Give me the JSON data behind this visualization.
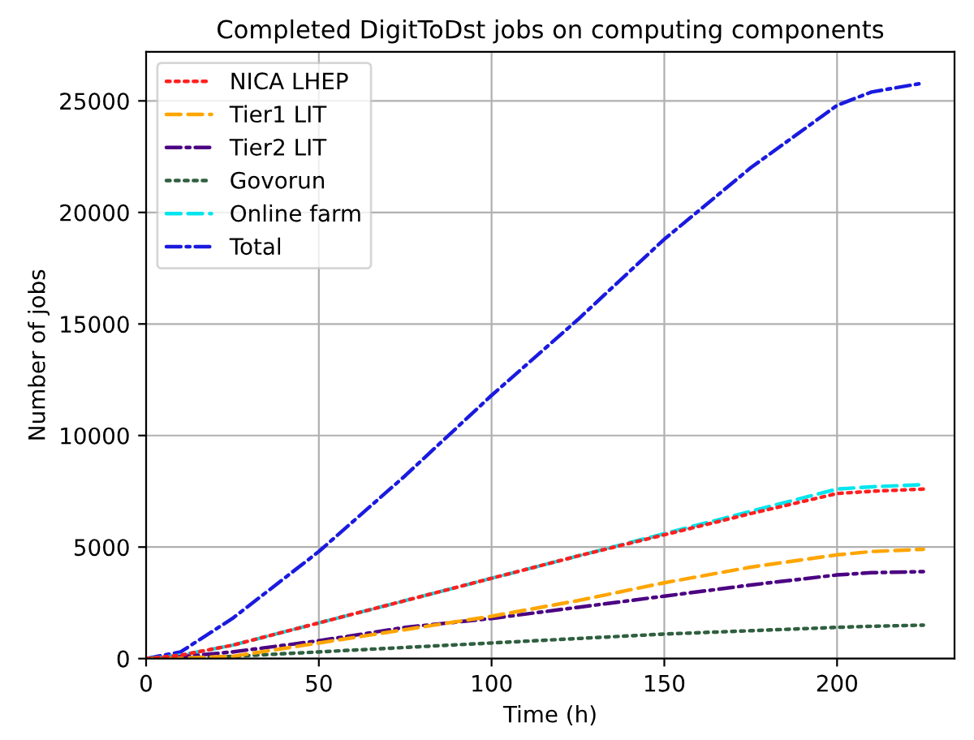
{
  "chart_data": {
    "type": "line",
    "title": "Completed DigitToDst jobs on computing components",
    "xlabel": "Time (h)",
    "ylabel": "Number of jobs",
    "x": [
      0,
      10,
      25,
      50,
      75,
      100,
      125,
      150,
      175,
      200,
      210,
      225
    ],
    "series": [
      {
        "name": "NICA LHEP",
        "color": "#ff2020",
        "line_style": "dotted",
        "values": [
          0,
          150,
          600,
          1600,
          2600,
          3600,
          4600,
          5550,
          6500,
          7400,
          7500,
          7600
        ]
      },
      {
        "name": "Tier1 LIT",
        "color": "#ffa500",
        "line_style": "dashed",
        "values": [
          0,
          20,
          100,
          700,
          1300,
          1900,
          2600,
          3400,
          4100,
          4650,
          4800,
          4900
        ]
      },
      {
        "name": "Tier2 LIT",
        "color": "#4b0082",
        "line_style": "dashdot",
        "values": [
          0,
          80,
          300,
          800,
          1400,
          1800,
          2300,
          2800,
          3300,
          3750,
          3850,
          3900
        ]
      },
      {
        "name": "Govorun",
        "color": "#2f5f3f",
        "line_style": "dotted",
        "values": [
          0,
          30,
          100,
          300,
          500,
          700,
          900,
          1100,
          1250,
          1400,
          1450,
          1500
        ]
      },
      {
        "name": "Online farm",
        "color": "#00e5ee",
        "line_style": "dashed",
        "values": [
          0,
          150,
          600,
          1600,
          2600,
          3600,
          4600,
          5600,
          6600,
          7600,
          7700,
          7800
        ]
      },
      {
        "name": "Total",
        "color": "#1a1adf",
        "line_style": "dashdot",
        "values": [
          0,
          300,
          1800,
          4800,
          8200,
          11800,
          15200,
          18800,
          22000,
          24800,
          25400,
          25800
        ]
      }
    ],
    "xlim": [
      0,
      234
    ],
    "ylim": [
      0,
      27200
    ],
    "xticks": [
      0,
      50,
      100,
      150,
      200
    ],
    "yticks": [
      0,
      5000,
      10000,
      15000,
      20000,
      25000
    ],
    "grid": true,
    "legend": "top left"
  }
}
